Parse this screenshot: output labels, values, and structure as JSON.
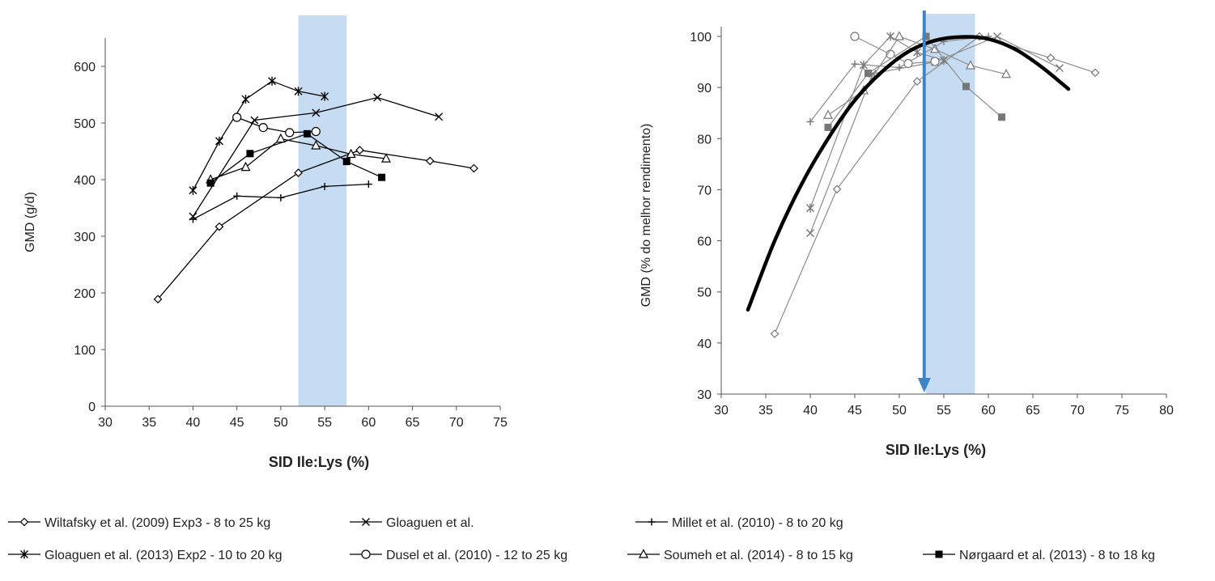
{
  "chart_data": [
    {
      "type": "line",
      "xlabel": "SID Ile:Lys (%)",
      "ylabel": "GMD (g/d)",
      "xlim": [
        30,
        75
      ],
      "ylim": [
        0,
        650
      ],
      "xticks": [
        "30",
        "35",
        "40",
        "45",
        "50",
        "55",
        "60",
        "65",
        "70",
        "75"
      ],
      "yticks": [
        "0",
        "100",
        "200",
        "300",
        "400",
        "500",
        "600"
      ],
      "shaded_region": [
        52,
        57.5
      ],
      "shade_color": "#c6dcf2",
      "series": [
        {
          "name": "Wiltafsky et al. (2009) Exp3 - 8 to 25 kg",
          "marker": "diamond-open",
          "x": [
            36,
            43,
            52,
            59,
            67,
            72
          ],
          "y": [
            189,
            317,
            412,
            452,
            433,
            420
          ]
        },
        {
          "name": "Gloaguen et al.",
          "marker": "x",
          "x": [
            40,
            47,
            54,
            61,
            68
          ],
          "y": [
            335,
            505,
            518,
            545,
            511
          ]
        },
        {
          "name": "Millet et al. (2010) - 8 to 20 kg",
          "marker": "plus",
          "x": [
            40,
            45,
            50,
            55,
            60
          ],
          "y": [
            330,
            371,
            368,
            388,
            392
          ]
        },
        {
          "name": "Gloaguen et al. (2013) Exp2 - 10 to 20 kg",
          "marker": "star",
          "x": [
            40,
            43,
            46,
            49,
            52,
            55
          ],
          "y": [
            381,
            468,
            542,
            574,
            556,
            547
          ]
        },
        {
          "name": "Dusel et al. (2010) -  12 to 25 kg",
          "marker": "circle-open",
          "x": [
            45,
            48,
            51,
            54
          ],
          "y": [
            510,
            492,
            483,
            485
          ]
        },
        {
          "name": "Soumeh et al. (2014) - 8 to 15 kg",
          "marker": "triangle-open",
          "x": [
            42,
            46,
            50,
            54,
            58,
            62
          ],
          "y": [
            400,
            422,
            472,
            460,
            445,
            437
          ]
        },
        {
          "name": "Nørgaard et al. (2013) - 8 to 18 kg",
          "marker": "square-filled",
          "x": [
            42,
            46.5,
            53,
            57.5,
            61.5
          ],
          "y": [
            394,
            446,
            481,
            432,
            404
          ]
        }
      ]
    },
    {
      "type": "line",
      "xlabel": "SID Ile:Lys (%)",
      "ylabel": "GMD (% do melhor rendimento)",
      "xlim": [
        30,
        80
      ],
      "ylim": [
        30,
        100
      ],
      "xticks": [
        "30",
        "35",
        "40",
        "45",
        "50",
        "55",
        "60",
        "65",
        "70",
        "75",
        "80"
      ],
      "yticks": [
        "30",
        "40",
        "50",
        "60",
        "70",
        "80",
        "90",
        "100"
      ],
      "shaded_region": [
        53,
        58.5
      ],
      "shade_color": "#c6dcf2",
      "arrow_x": 52.8,
      "arrow_color": "#3d85c6",
      "fitted_curve": {
        "x": [
          33,
          36,
          39,
          42,
          45,
          48,
          51,
          54,
          57,
          60,
          63,
          66,
          69
        ],
        "y": [
          46.5,
          60,
          71,
          80,
          87.5,
          93,
          97,
          99.2,
          99.9,
          99.5,
          97.5,
          94,
          89.7
        ]
      },
      "series": [
        {
          "name": "Wiltafsky et al. (2009) Exp3 - 8 to 25 kg",
          "marker": "diamond-open",
          "x": [
            36,
            43,
            52,
            59,
            67,
            72
          ],
          "y": [
            41.8,
            70.1,
            91.2,
            100,
            95.8,
            92.9
          ]
        },
        {
          "name": "Gloaguen et al.",
          "marker": "x",
          "x": [
            40,
            47,
            54,
            61,
            68
          ],
          "y": [
            61.5,
            92.7,
            95,
            100,
            93.8
          ]
        },
        {
          "name": "Millet et al. (2010) - 8 to 20 kg",
          "marker": "plus",
          "x": [
            40,
            45,
            50,
            55,
            60
          ],
          "y": [
            83.3,
            94.6,
            93.9,
            99,
            100
          ]
        },
        {
          "name": "Gloaguen et al. (2013) Exp2 - 10 to 20 kg",
          "marker": "star",
          "x": [
            40,
            46,
            49,
            52,
            55
          ],
          "y": [
            66.4,
            94.4,
            100,
            96.9,
            95.3
          ]
        },
        {
          "name": "Dusel et al. (2010) -  12 to 25 kg",
          "marker": "circle-open",
          "x": [
            45,
            49,
            51,
            54
          ],
          "y": [
            100,
            96.5,
            94.7,
            95.1
          ]
        },
        {
          "name": "Soumeh et al. (2014) - 8 to 15 kg",
          "marker": "triangle-open",
          "x": [
            42,
            46,
            50,
            54,
            58,
            62
          ],
          "y": [
            84.6,
            89.4,
            100,
            97.5,
            94.3,
            92.6
          ]
        },
        {
          "name": "Nørgaard et al. (2013) - 8 to 18 kg",
          "marker": "square-filled",
          "x": [
            42,
            46.5,
            53,
            57.5,
            61.5
          ],
          "y": [
            82.2,
            92.8,
            100,
            90.2,
            84.2
          ]
        }
      ]
    }
  ],
  "legend": [
    {
      "label": "Wiltafsky et al. (2009) Exp3 - 8 to 25 kg",
      "marker": "diamond-open"
    },
    {
      "label": "Gloaguen et al.",
      "marker": "x"
    },
    {
      "label": "Millet et al. (2010) - 8 to 20 kg",
      "marker": "plus"
    },
    {
      "label": "Gloaguen et al. (2013) Exp2 - 10 to 20 kg",
      "marker": "star"
    },
    {
      "label": "Dusel et al. (2010) -  12 to 25 kg",
      "marker": "circle-open"
    },
    {
      "label": "Soumeh et al. (2014) - 8 to 15 kg",
      "marker": "triangle-open"
    },
    {
      "label": "Nørgaard et al. (2013) - 8 to 18 kg",
      "marker": "square-filled"
    }
  ]
}
